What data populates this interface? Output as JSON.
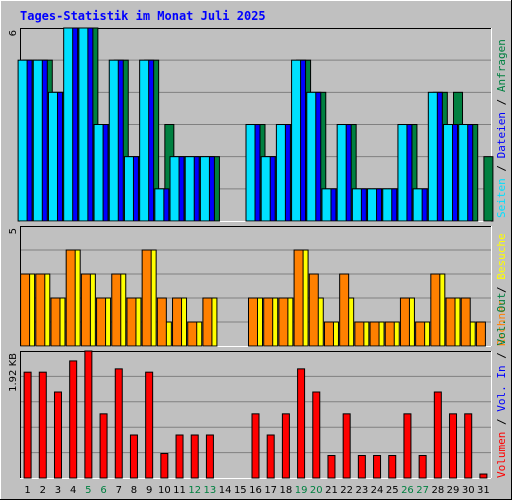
{
  "colors": {
    "background": "#c0c0c0",
    "title": "#0000ff",
    "hits": "#008040",
    "files": "#0000ff",
    "pages": "#00e0ff",
    "visits": "#ffff00",
    "hosts": "#ff8000",
    "kbytes": "#ff0000",
    "separator": "#000000",
    "day_weekday": "#000000",
    "day_weekend": "#008040"
  },
  "chart_data": [
    {
      "type": "bar",
      "panel": "top",
      "title": "Tages-Statistik im Monat Juli 2025",
      "ymax_label": "6",
      "ylim": [
        0,
        6
      ],
      "grid": true,
      "categories": [
        "1",
        "2",
        "3",
        "4",
        "5",
        "6",
        "7",
        "8",
        "9",
        "10",
        "11",
        "12",
        "13",
        "14",
        "15",
        "16",
        "17",
        "18",
        "19",
        "20",
        "21",
        "22",
        "23",
        "24",
        "25",
        "26",
        "27",
        "28",
        "29",
        "30",
        "31"
      ],
      "series": [
        {
          "name": "Anfragen",
          "color": "#008040",
          "values": [
            5,
            5,
            4,
            6,
            6,
            3,
            5,
            2,
            5,
            3,
            2,
            2,
            2,
            0,
            0,
            3,
            2,
            3,
            5,
            4,
            1,
            3,
            1,
            1,
            1,
            3,
            1,
            4,
            4,
            3,
            2
          ]
        },
        {
          "name": "Dateien",
          "color": "#0000ff",
          "values": [
            5,
            5,
            4,
            6,
            6,
            3,
            5,
            2,
            5,
            1,
            2,
            2,
            2,
            0,
            0,
            3,
            2,
            3,
            5,
            4,
            1,
            3,
            1,
            1,
            1,
            3,
            1,
            4,
            3,
            3,
            0
          ]
        },
        {
          "name": "Seiten",
          "color": "#00e0ff",
          "values": [
            5,
            5,
            4,
            6,
            6,
            3,
            5,
            2,
            5,
            1,
            2,
            2,
            2,
            0,
            0,
            3,
            2,
            3,
            5,
            4,
            1,
            3,
            1,
            1,
            1,
            3,
            1,
            4,
            3,
            3,
            0
          ]
        }
      ]
    },
    {
      "type": "bar",
      "panel": "middle",
      "ymax_label": "5",
      "ylim": [
        0,
        5
      ],
      "grid": true,
      "categories": [
        "1",
        "2",
        "3",
        "4",
        "5",
        "6",
        "7",
        "8",
        "9",
        "10",
        "11",
        "12",
        "13",
        "14",
        "15",
        "16",
        "17",
        "18",
        "19",
        "20",
        "21",
        "22",
        "23",
        "24",
        "25",
        "26",
        "27",
        "28",
        "29",
        "30",
        "31"
      ],
      "series": [
        {
          "name": "Besuche",
          "color": "#ffff00",
          "values": [
            3,
            3,
            2,
            4,
            3,
            2,
            3,
            2,
            4,
            1,
            2,
            1,
            2,
            0,
            0,
            2,
            2,
            2,
            4,
            2,
            1,
            2,
            1,
            1,
            1,
            2,
            1,
            3,
            2,
            1,
            0
          ]
        },
        {
          "name": "Rechner",
          "color": "#ff8000",
          "values": [
            3,
            3,
            2,
            4,
            3,
            2,
            3,
            2,
            4,
            2,
            2,
            1,
            2,
            0,
            0,
            2,
            2,
            2,
            4,
            3,
            1,
            3,
            1,
            1,
            1,
            2,
            1,
            3,
            2,
            2,
            1
          ]
        }
      ]
    },
    {
      "type": "bar",
      "panel": "bottom",
      "ymax_label": "1.92 KB",
      "ylim": [
        0,
        1.92
      ],
      "grid": true,
      "categories": [
        "1",
        "2",
        "3",
        "4",
        "5",
        "6",
        "7",
        "8",
        "9",
        "10",
        "11",
        "12",
        "13",
        "14",
        "15",
        "16",
        "17",
        "18",
        "19",
        "20",
        "21",
        "22",
        "23",
        "24",
        "25",
        "26",
        "27",
        "28",
        "29",
        "30",
        "31"
      ],
      "series": [
        {
          "name": "Volumen",
          "color": "#ff0000",
          "values": [
            1.6,
            1.6,
            1.3,
            1.77,
            1.92,
            0.97,
            1.65,
            0.65,
            1.6,
            0.37,
            0.65,
            0.65,
            0.65,
            0,
            0,
            0.97,
            0.65,
            0.97,
            1.65,
            1.3,
            0.34,
            0.97,
            0.34,
            0.34,
            0.34,
            0.97,
            0.34,
            1.3,
            0.97,
            0.97,
            0.06
          ]
        }
      ]
    }
  ],
  "weekend_days": [
    "5",
    "6",
    "12",
    "13",
    "19",
    "20",
    "26",
    "27"
  ],
  "legend": {
    "top": [
      "Anfragen",
      "Dateien",
      "Seiten"
    ],
    "middle": [
      "Besuche",
      "Rechner"
    ],
    "bottom": [
      "Volumen",
      "Vol. In",
      "Vol. Out"
    ],
    "separator": " / "
  }
}
